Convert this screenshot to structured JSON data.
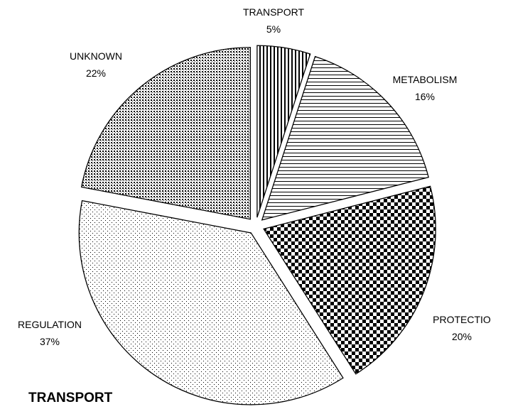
{
  "chart_data": {
    "type": "pie",
    "categories": [
      "TRANSPORT",
      "METABOLISM",
      "PROTECTIO",
      "REGULATION",
      "UNKNOWN"
    ],
    "values": [
      5,
      16,
      20,
      37,
      22
    ],
    "value_labels": [
      "5%",
      "16%",
      "20%",
      "37%",
      "22%"
    ],
    "annotation": "TRANSPORT"
  }
}
